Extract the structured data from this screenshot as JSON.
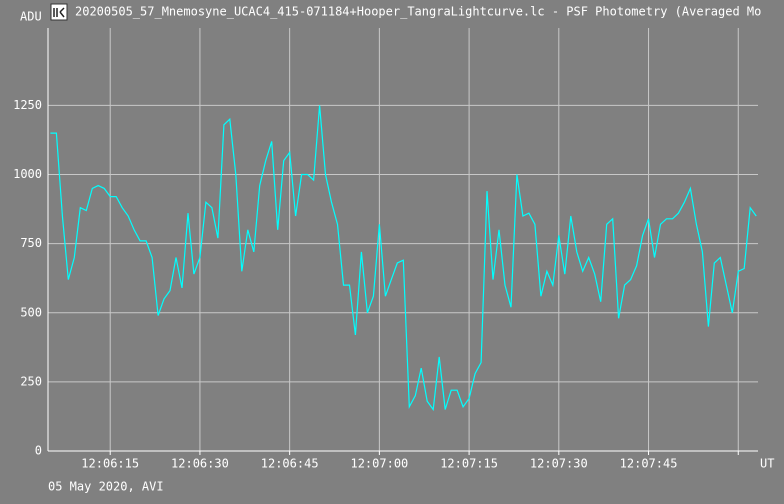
{
  "chart_data": {
    "type": "line",
    "title": "20200505_57_Mnemosyne_UCAC4_415-071184+Hooper_TangraLightcurve.lc - PSF Photometry (Averaged Mo",
    "y_label": "ADU",
    "x_label": "UT",
    "footer": "05 May 2020, AVI",
    "color": "#00ffff",
    "grid": true,
    "xlim": [
      43564.6,
      43683.3
    ],
    "ylim": [
      0,
      1530
    ],
    "yticks": [
      0,
      250,
      500,
      750,
      1000,
      1250
    ],
    "xticks": [
      {
        "value": 43575,
        "label": "12:06:15"
      },
      {
        "value": 43590,
        "label": "12:06:30"
      },
      {
        "value": 43605,
        "label": "12:06:45"
      },
      {
        "value": 43620,
        "label": "12:07:00"
      },
      {
        "value": 43635,
        "label": "12:07:15"
      },
      {
        "value": 43650,
        "label": "12:07:30"
      },
      {
        "value": 43665,
        "label": "12:07:45"
      },
      {
        "value": 43680,
        "label": null
      }
    ],
    "x": [
      43565,
      43566,
      43567,
      43568,
      43569,
      43570,
      43571,
      43572,
      43573,
      43574,
      43575,
      43576,
      43577,
      43578,
      43579,
      43580,
      43581,
      43582,
      43583,
      43584,
      43585,
      43586,
      43587,
      43588,
      43589,
      43590,
      43591,
      43592,
      43593,
      43594,
      43595,
      43596,
      43597,
      43598,
      43599,
      43600,
      43601,
      43602,
      43603,
      43604,
      43605,
      43606,
      43607,
      43608,
      43609,
      43610,
      43611,
      43612,
      43613,
      43614,
      43615,
      43616,
      43617,
      43618,
      43619,
      43620,
      43621,
      43622,
      43623,
      43624,
      43625,
      43626,
      43627,
      43628,
      43629,
      43630,
      43631,
      43632,
      43633,
      43634,
      43635,
      43636,
      43637,
      43638,
      43639,
      43640,
      43641,
      43642,
      43643,
      43644,
      43645,
      43646,
      43647,
      43648,
      43649,
      43650,
      43651,
      43652,
      43653,
      43654,
      43655,
      43656,
      43657,
      43658,
      43659,
      43660,
      43661,
      43662,
      43663,
      43664,
      43665,
      43666,
      43667,
      43668,
      43669,
      43670,
      43671,
      43672,
      43673,
      43674,
      43675,
      43676,
      43677,
      43678,
      43679,
      43680,
      43681,
      43682,
      43683
    ],
    "values": [
      1150,
      1150,
      850,
      620,
      700,
      880,
      870,
      950,
      960,
      950,
      920,
      920,
      880,
      850,
      800,
      760,
      760,
      700,
      490,
      550,
      580,
      700,
      590,
      860,
      640,
      700,
      900,
      880,
      770,
      1180,
      1200,
      1000,
      650,
      800,
      720,
      960,
      1050,
      1120,
      800,
      1050,
      1080,
      850,
      1000,
      1000,
      980,
      1250,
      1000,
      900,
      820,
      600,
      600,
      420,
      720,
      500,
      560,
      820,
      560,
      620,
      680,
      690,
      160,
      200,
      300,
      180,
      150,
      340,
      150,
      220,
      220,
      160,
      190,
      280,
      320,
      940,
      620,
      800,
      600,
      520,
      1000,
      850,
      860,
      820,
      560,
      650,
      600,
      780,
      640,
      850,
      720,
      650,
      700,
      640,
      540,
      820,
      840,
      480,
      600,
      620,
      670,
      780,
      840,
      700,
      820,
      840,
      840,
      860,
      900,
      950,
      820,
      720,
      450,
      680,
      700,
      600,
      500,
      650,
      660,
      880,
      850
    ]
  }
}
